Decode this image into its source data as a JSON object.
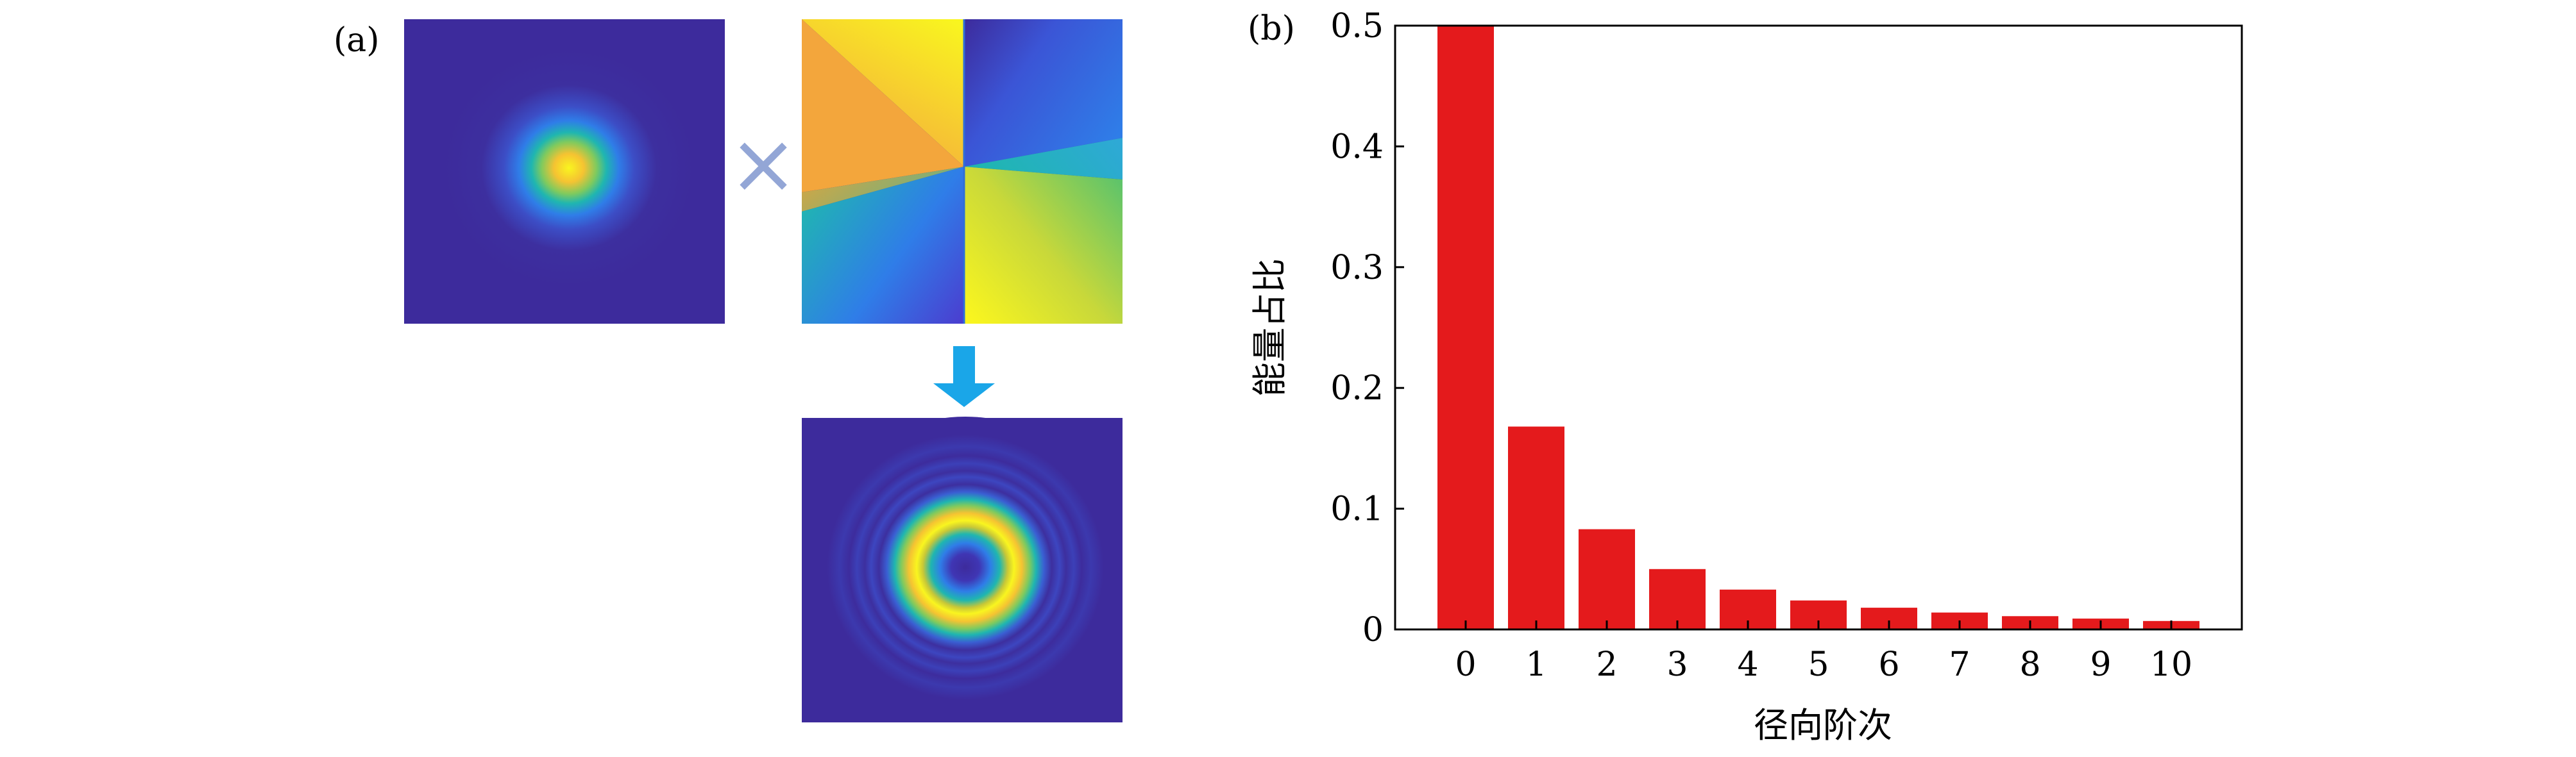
{
  "panel_a": {
    "label": "(a)",
    "operator_symbol": "×",
    "images": [
      {
        "name": "gaussian-beam-intensity"
      },
      {
        "name": "vortex-phase-mask"
      },
      {
        "name": "ring-beam-intensity"
      }
    ]
  },
  "colors": {
    "bar": "#e41a1c",
    "arrow": "#1aa6e8",
    "cross": "#93a6d6",
    "cmap_dark": "#3d2b9c",
    "cmap_yellow": "#f9f51f"
  },
  "chart_data": {
    "panel_label": "(b)",
    "type": "bar",
    "title": "",
    "xlabel": "径向阶次",
    "ylabel": "能量占比",
    "categories": [
      "0",
      "1",
      "2",
      "3",
      "4",
      "5",
      "6",
      "7",
      "8",
      "9",
      "10"
    ],
    "values": [
      0.5,
      0.168,
      0.083,
      0.05,
      0.033,
      0.024,
      0.018,
      0.014,
      0.011,
      0.009,
      0.007
    ],
    "ylim": [
      0,
      0.5
    ],
    "yticks": [
      0,
      0.1,
      0.2,
      0.3,
      0.4,
      0.5
    ],
    "ytick_labels": [
      "0",
      "0.1",
      "0.2",
      "0.3",
      "0.4",
      "0.5"
    ],
    "xlim": [
      -1,
      11
    ],
    "grid": false,
    "legend": false
  }
}
